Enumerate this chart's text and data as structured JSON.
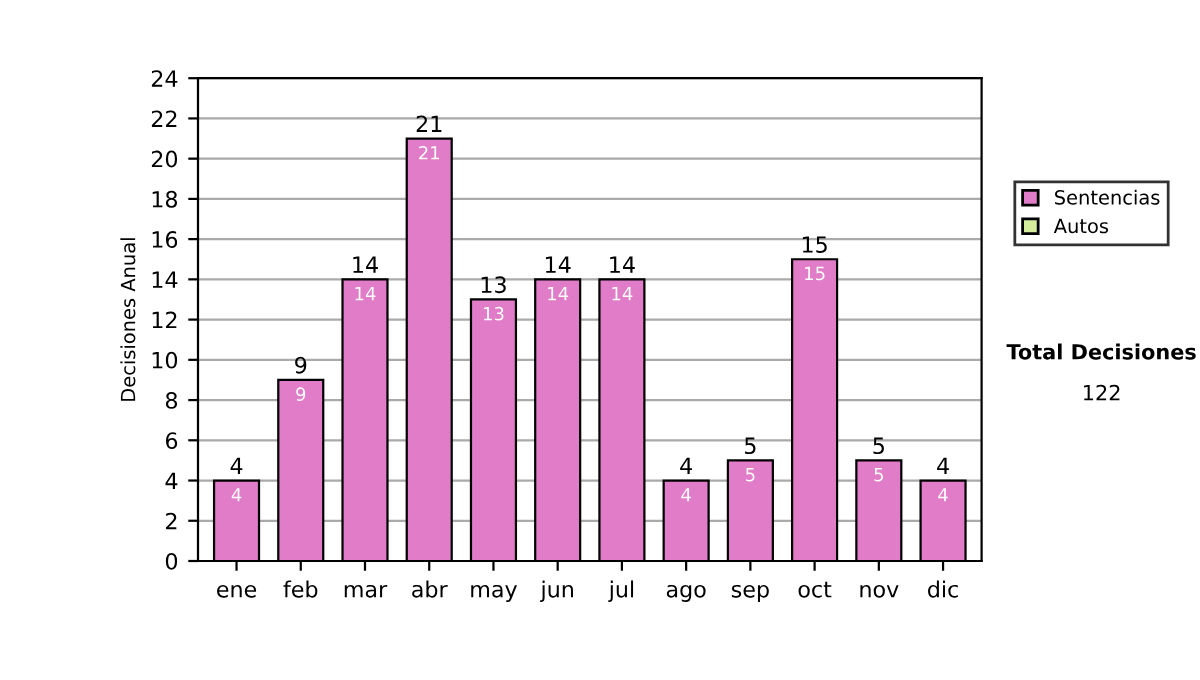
{
  "chart_data": {
    "type": "bar",
    "stacked": true,
    "ylabel": "Decisiones Anual",
    "categories": [
      "ene",
      "feb",
      "mar",
      "abr",
      "may",
      "jun",
      "jul",
      "ago",
      "sep",
      "oct",
      "nov",
      "dic"
    ],
    "series": [
      {
        "name": "Sentencias",
        "color": "#e07cc8",
        "values": [
          4,
          9,
          14,
          21,
          13,
          14,
          14,
          4,
          5,
          15,
          5,
          4
        ],
        "value_labels": [
          "4",
          "9",
          "14",
          "21",
          "13",
          "14",
          "14",
          "4",
          "5",
          "15",
          "5",
          "4"
        ]
      },
      {
        "name": "Autos",
        "color": "#d4ec9c",
        "values": [
          0,
          0,
          0,
          0,
          0,
          0,
          0,
          0,
          0,
          0,
          0,
          0
        ]
      }
    ],
    "totals": [
      "4",
      "9",
      "14",
      "21",
      "13",
      "14",
      "14",
      "4",
      "5",
      "15",
      "5",
      "4"
    ],
    "ylim": [
      0,
      24
    ],
    "yticks": [
      0,
      2,
      4,
      6,
      8,
      10,
      12,
      14,
      16,
      18,
      20,
      22,
      24
    ],
    "grid": "y",
    "legend": "right",
    "annotations": [
      "Total Decisiones",
      "122"
    ]
  }
}
